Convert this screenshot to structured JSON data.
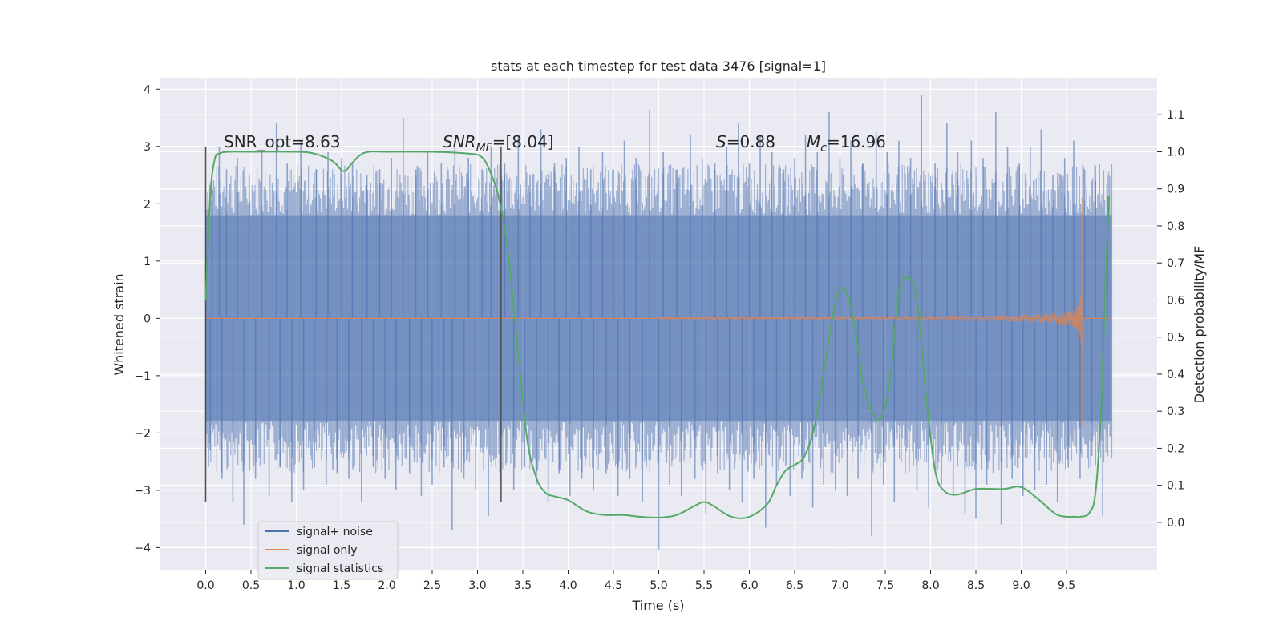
{
  "chart_data": {
    "type": "line",
    "title": "stats at each timestep for test data 3476 [signal=1]",
    "xlabel": "Time (s)",
    "ylabel_left": "Whitened strain",
    "ylabel_right": "Detection probability/MF",
    "xlim": [
      -0.5,
      10.5
    ],
    "ylim_left": [
      -4.4,
      4.2
    ],
    "ylim_right": [
      -0.13,
      1.2
    ],
    "x_ticks": [
      "0.0",
      "0.5",
      "1.0",
      "1.5",
      "2.0",
      "2.5",
      "3.0",
      "3.5",
      "4.0",
      "4.5",
      "5.0",
      "5.5",
      "6.0",
      "6.5",
      "7.0",
      "7.5",
      "8.0",
      "8.5",
      "9.0",
      "9.5"
    ],
    "y_ticks_left": [
      "4",
      "3",
      "2",
      "1",
      "0",
      "−1",
      "−2",
      "−3",
      "−4"
    ],
    "y_ticks_right": [
      "1.1",
      "1.0",
      "0.9",
      "0.8",
      "0.7",
      "0.6",
      "0.5",
      "0.4",
      "0.3",
      "0.2",
      "0.1",
      "0.0"
    ],
    "annotations": {
      "snr_opt": "SNR_opt=8.63",
      "snr_mf_base": "SNR",
      "snr_mf_sub": "MF",
      "snr_mf_value": "=[8.04]",
      "s_sym": "S",
      "s_value": "=0.88",
      "mc_base": "M",
      "mc_sub": "c",
      "mc_value": "=16.96"
    },
    "vlines": [
      {
        "x": 0.0,
        "ymin": -3.2,
        "ymax": 3.0
      },
      {
        "x": 3.26,
        "ymin": -3.2,
        "ymax": 3.0
      }
    ],
    "noise": {
      "x_start": 0.0,
      "x_end": 10.0,
      "band_hi": 1.8,
      "band_lo": -1.8,
      "spikes_up": [
        [
          0.07,
          2.4
        ],
        [
          0.15,
          3.0
        ],
        [
          0.23,
          2.6
        ],
        [
          0.35,
          2.8
        ],
        [
          0.48,
          2.5
        ],
        [
          0.62,
          2.9
        ],
        [
          0.78,
          3.4
        ],
        [
          0.9,
          2.7
        ],
        [
          1.05,
          3.1
        ],
        [
          1.22,
          2.6
        ],
        [
          1.35,
          2.9
        ],
        [
          1.5,
          2.8
        ],
        [
          1.62,
          2.7
        ],
        [
          1.78,
          2.5
        ],
        [
          1.92,
          2.6
        ],
        [
          2.05,
          2.8
        ],
        [
          2.18,
          3.5
        ],
        [
          2.32,
          2.6
        ],
        [
          2.45,
          2.9
        ],
        [
          2.6,
          2.7
        ],
        [
          2.75,
          3.0
        ],
        [
          2.9,
          2.8
        ],
        [
          3.05,
          2.6
        ],
        [
          3.15,
          3.0
        ],
        [
          3.3,
          2.7
        ],
        [
          3.45,
          3.2
        ],
        [
          3.58,
          2.5
        ],
        [
          3.7,
          3.3
        ],
        [
          3.85,
          2.7
        ],
        [
          3.98,
          2.8
        ],
        [
          4.12,
          3.0
        ],
        [
          4.25,
          2.6
        ],
        [
          4.38,
          2.9
        ],
        [
          4.5,
          2.6
        ],
        [
          4.62,
          3.1
        ],
        [
          4.75,
          2.8
        ],
        [
          4.9,
          3.65
        ],
        [
          5.05,
          2.9
        ],
        [
          5.2,
          2.6
        ],
        [
          5.35,
          3.2
        ],
        [
          5.48,
          2.8
        ],
        [
          5.62,
          2.7
        ],
        [
          5.75,
          3.0
        ],
        [
          5.88,
          3.4
        ],
        [
          6.0,
          2.7
        ],
        [
          6.12,
          3.2
        ],
        [
          6.25,
          2.9
        ],
        [
          6.38,
          2.6
        ],
        [
          6.5,
          2.8
        ],
        [
          6.62,
          3.2
        ],
        [
          6.75,
          2.9
        ],
        [
          6.88,
          3.6
        ],
        [
          7.0,
          2.8
        ],
        [
          7.12,
          3.1
        ],
        [
          7.25,
          2.7
        ],
        [
          7.4,
          3.25
        ],
        [
          7.52,
          2.9
        ],
        [
          7.65,
          3.1
        ],
        [
          7.78,
          2.8
        ],
        [
          7.9,
          3.9
        ],
        [
          8.05,
          2.7
        ],
        [
          8.18,
          3.4
        ],
        [
          8.3,
          2.9
        ],
        [
          8.45,
          3.1
        ],
        [
          8.58,
          2.8
        ],
        [
          8.72,
          3.6
        ],
        [
          8.85,
          3.0
        ],
        [
          8.98,
          2.7
        ],
        [
          9.1,
          3.0
        ],
        [
          9.22,
          3.3
        ],
        [
          9.35,
          2.5
        ],
        [
          9.48,
          2.8
        ],
        [
          9.58,
          3.1
        ],
        [
          9.7,
          2.6
        ],
        [
          9.82,
          2.4
        ],
        [
          9.95,
          2.5
        ]
      ],
      "spikes_down": [
        [
          0.05,
          -2.3
        ],
        [
          0.18,
          -2.8
        ],
        [
          0.3,
          -3.2
        ],
        [
          0.42,
          -3.6
        ],
        [
          0.55,
          -2.8
        ],
        [
          0.7,
          -3.1
        ],
        [
          0.82,
          -2.6
        ],
        [
          0.95,
          -3.2
        ],
        [
          1.08,
          -3.0
        ],
        [
          1.2,
          -2.6
        ],
        [
          1.33,
          -2.9
        ],
        [
          1.45,
          -2.7
        ],
        [
          1.58,
          -2.8
        ],
        [
          1.72,
          -3.2
        ],
        [
          1.85,
          -2.6
        ],
        [
          1.98,
          -2.8
        ],
        [
          2.1,
          -3.0
        ],
        [
          2.25,
          -2.7
        ],
        [
          2.38,
          -3.1
        ],
        [
          2.5,
          -2.9
        ],
        [
          2.63,
          -2.6
        ],
        [
          2.72,
          -3.7
        ],
        [
          2.85,
          -2.8
        ],
        [
          2.98,
          -3.0
        ],
        [
          3.12,
          -3.45
        ],
        [
          3.25,
          -2.8
        ],
        [
          3.4,
          -3.0
        ],
        [
          3.52,
          -2.6
        ],
        [
          3.65,
          -2.9
        ],
        [
          3.78,
          -3.2
        ],
        [
          3.9,
          -2.7
        ],
        [
          4.02,
          -3.1
        ],
        [
          4.15,
          -2.8
        ],
        [
          4.28,
          -3.0
        ],
        [
          4.42,
          -2.7
        ],
        [
          4.55,
          -3.1
        ],
        [
          4.68,
          -2.8
        ],
        [
          4.82,
          -3.2
        ],
        [
          5.0,
          -4.05
        ],
        [
          5.12,
          -2.9
        ],
        [
          5.25,
          -3.1
        ],
        [
          5.4,
          -2.8
        ],
        [
          5.52,
          -3.4
        ],
        [
          5.65,
          -2.7
        ],
        [
          5.78,
          -3.0
        ],
        [
          5.92,
          -3.2
        ],
        [
          6.05,
          -2.8
        ],
        [
          6.18,
          -3.65
        ],
        [
          6.3,
          -2.9
        ],
        [
          6.45,
          -3.1
        ],
        [
          6.58,
          -2.8
        ],
        [
          6.7,
          -3.3
        ],
        [
          6.82,
          -2.9
        ],
        [
          6.95,
          -3.0
        ],
        [
          7.08,
          -3.1
        ],
        [
          7.2,
          -2.8
        ],
        [
          7.35,
          -3.8
        ],
        [
          7.48,
          -2.9
        ],
        [
          7.6,
          -3.2
        ],
        [
          7.72,
          -2.7
        ],
        [
          7.85,
          -3.0
        ],
        [
          7.98,
          -3.3
        ],
        [
          8.12,
          -2.9
        ],
        [
          8.25,
          -3.1
        ],
        [
          8.38,
          -3.4
        ],
        [
          8.5,
          -3.5
        ],
        [
          8.62,
          -2.9
        ],
        [
          8.78,
          -3.6
        ],
        [
          8.9,
          -2.8
        ],
        [
          9.02,
          -3.1
        ],
        [
          9.15,
          -3.0
        ],
        [
          9.28,
          -2.9
        ],
        [
          9.4,
          -3.2
        ],
        [
          9.52,
          -2.6
        ],
        [
          9.65,
          -2.8
        ],
        [
          9.78,
          -2.4
        ],
        [
          9.9,
          -3.45
        ]
      ]
    },
    "signal_only": {
      "onset": 5.0,
      "merger": 9.67,
      "peak_amplitude_up": 2.1,
      "peak_amplitude_down": -1.9
    },
    "signal_statistics": {
      "x": [
        0.0,
        0.05,
        0.1,
        0.15,
        0.25,
        0.5,
        1.0,
        1.2,
        1.4,
        1.5,
        1.55,
        1.6,
        1.7,
        1.8,
        2.0,
        2.5,
        2.9,
        3.05,
        3.15,
        3.25,
        3.35,
        3.45,
        3.55,
        3.65,
        3.75,
        3.85,
        4.0,
        4.2,
        4.4,
        4.6,
        4.8,
        5.0,
        5.2,
        5.4,
        5.5,
        5.6,
        5.8,
        6.0,
        6.2,
        6.3,
        6.4,
        6.5,
        6.6,
        6.7,
        6.8,
        6.9,
        7.0,
        7.1,
        7.2,
        7.25,
        7.35,
        7.45,
        7.55,
        7.65,
        7.75,
        7.85,
        7.95,
        8.05,
        8.15,
        8.3,
        8.5,
        8.8,
        9.0,
        9.2,
        9.4,
        9.6,
        9.65,
        9.75,
        9.82,
        9.88,
        9.93,
        9.97
      ],
      "y": [
        0.6,
        0.88,
        0.98,
        0.995,
        1.0,
        1.0,
        1.0,
        0.995,
        0.975,
        0.95,
        0.95,
        0.965,
        0.99,
        1.0,
        1.0,
        1.0,
        0.995,
        0.985,
        0.94,
        0.86,
        0.7,
        0.45,
        0.22,
        0.12,
        0.08,
        0.07,
        0.06,
        0.03,
        0.02,
        0.02,
        0.015,
        0.013,
        0.02,
        0.045,
        0.055,
        0.045,
        0.015,
        0.015,
        0.05,
        0.1,
        0.14,
        0.155,
        0.175,
        0.24,
        0.37,
        0.53,
        0.63,
        0.6,
        0.47,
        0.38,
        0.3,
        0.28,
        0.38,
        0.62,
        0.66,
        0.6,
        0.34,
        0.14,
        0.085,
        0.075,
        0.09,
        0.09,
        0.095,
        0.06,
        0.02,
        0.015,
        0.015,
        0.025,
        0.08,
        0.3,
        0.65,
        0.88
      ],
      "color": "#55a868"
    },
    "legend": {
      "location": "lower-left",
      "entries": [
        {
          "label": "signal+ noise",
          "color": "#4c72b0"
        },
        {
          "label": "signal only",
          "color": "#dd8452"
        },
        {
          "label": "signal statistics",
          "color": "#55a868"
        }
      ]
    },
    "colors": {
      "plot_background": "#eaeaf2",
      "grid": "#ffffff",
      "noise": "#4c72b0",
      "signal": "#dd8452",
      "stats": "#55a868",
      "vline": "#4d4d4d"
    }
  }
}
